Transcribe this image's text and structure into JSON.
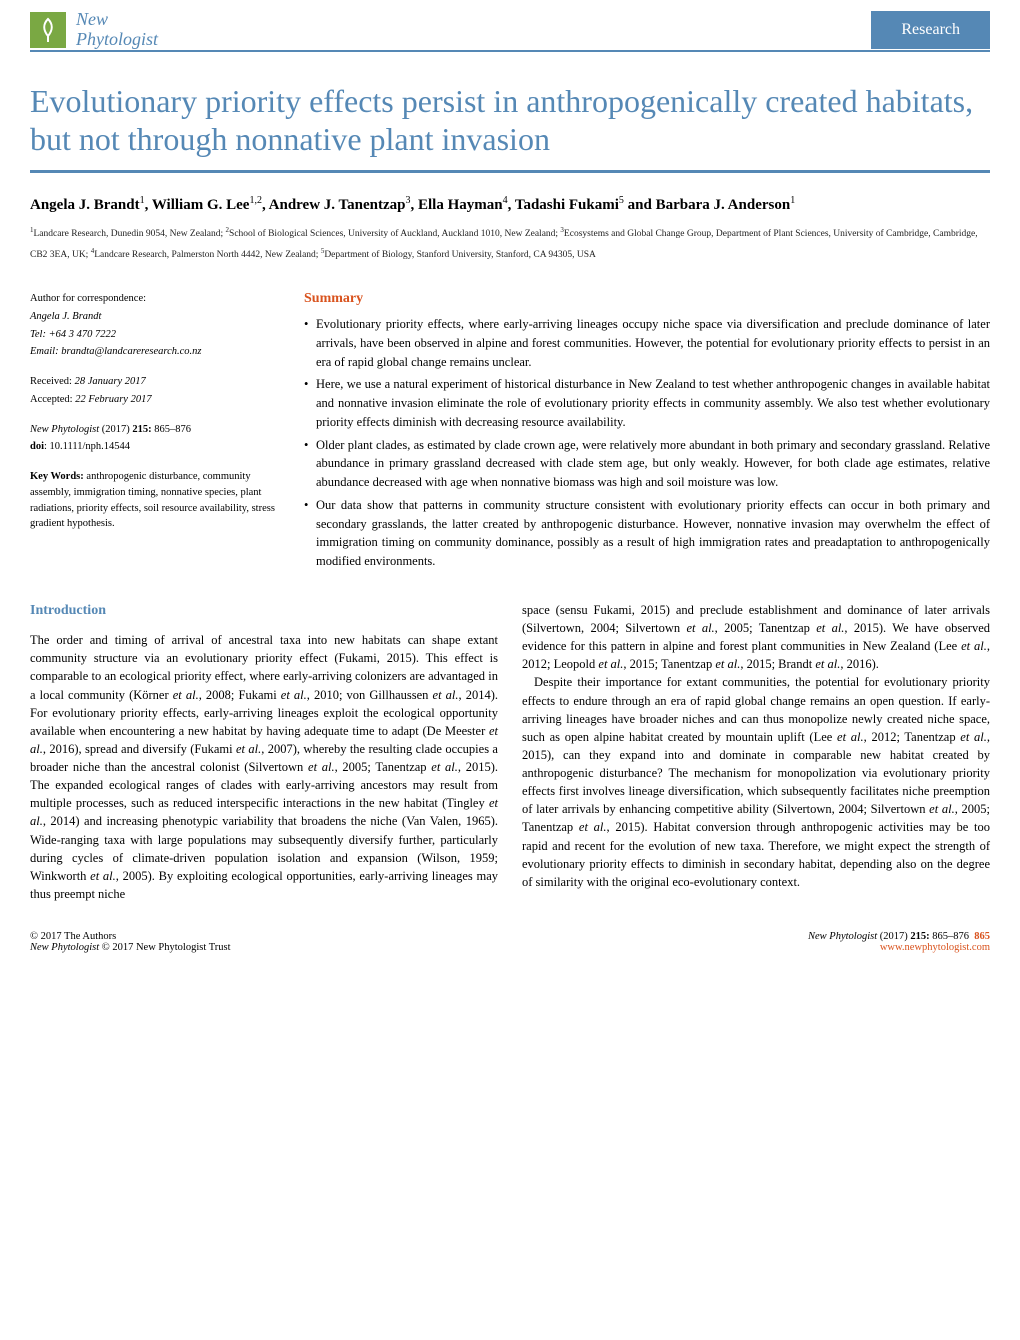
{
  "journal": {
    "line1": "New",
    "line2": "Phytologist"
  },
  "header": {
    "research": "Research"
  },
  "title": "Evolutionary priority effects persist in anthropogenically created habitats, but not through nonnative plant invasion",
  "authors_html": "Angela J. Brandt<sup>1</sup>, William G. Lee<sup>1,2</sup>, Andrew J. Tanentzap<sup>3</sup>, Ella Hayman<sup>4</sup>, Tadashi Fukami<sup>5</sup> and Barbara J. Anderson<sup>1</sup>",
  "affiliations_html": "<sup>1</sup>Landcare Research, Dunedin 9054, New Zealand; <sup>2</sup>School of Biological Sciences, University of Auckland, Auckland 1010, New Zealand; <sup>3</sup>Ecosystems and Global Change Group, Department of Plant Sciences, University of Cambridge, Cambridge, CB2 3EA, UK; <sup>4</sup>Landcare Research, Palmerston North 4442, New Zealand; <sup>5</sup>Department of Biology, Stanford University, Stanford, CA 94305, USA",
  "meta": {
    "corr_label": "Author for correspondence:",
    "corr_name": "Angela J. Brandt",
    "tel": "Tel: +64 3 470 7222",
    "email": "Email: brandta@landcareresearch.co.nz",
    "received": "Received: 28 January 2017",
    "accepted": "Accepted: 22 February 2017",
    "citation_html": "<span class=\"italic\">New Phytologist</span> (2017) <b>215:</b> 865–876",
    "doi": "doi: 10.1111/nph.14544",
    "keywords_label": "Key Words: ",
    "keywords": "anthropogenic disturbance, community assembly, immigration timing, nonnative species, plant radiations, priority effects, soil resource availability, stress gradient hypothesis."
  },
  "summary": {
    "title": "Summary",
    "bullets": [
      "Evolutionary priority effects, where early-arriving lineages occupy niche space via diversification and preclude dominance of later arrivals, have been observed in alpine and forest communities. However, the potential for evolutionary priority effects to persist in an era of rapid global change remains unclear.",
      "Here, we use a natural experiment of historical disturbance in New Zealand to test whether anthropogenic changes in available habitat and nonnative invasion eliminate the role of evolutionary priority effects in community assembly. We also test whether evolutionary priority effects diminish with decreasing resource availability.",
      "Older plant clades, as estimated by clade crown age, were relatively more abundant in both primary and secondary grassland. Relative abundance in primary grassland decreased with clade stem age, but only weakly. However, for both clade age estimates, relative abundance decreased with age when nonnative biomass was high and soil moisture was low.",
      "Our data show that patterns in community structure consistent with evolutionary priority effects can occur in both primary and secondary grasslands, the latter created by anthropogenic disturbance. However, nonnative invasion may overwhelm the effect of immigration timing on community dominance, possibly as a result of high immigration rates and preadaptation to anthropogenically modified environments."
    ]
  },
  "intro": {
    "title": "Introduction",
    "col1_html": "The order and timing of arrival of ancestral taxa into new habitats can shape extant community structure via an evolutionary priority effect (Fukami, 2015). This effect is comparable to an ecological priority effect, where early-arriving colonizers are advantaged in a local community (Körner <span class=\"em\">et al.</span>, 2008; Fukami <span class=\"em\">et al.</span>, 2010; von Gillhaussen <span class=\"em\">et al.</span>, 2014). For evolutionary priority effects, early-arriving lineages exploit the ecological opportunity available when encountering a new habitat by having adequate time to adapt (De Meester <span class=\"em\">et al.</span>, 2016), spread and diversify (Fukami <span class=\"em\">et al.</span>, 2007), whereby the resulting clade occupies a broader niche than the ancestral colonist (Silvertown <span class=\"em\">et al.</span>, 2005; Tanentzap <span class=\"em\">et al.</span>, 2015). The expanded ecological ranges of clades with early-arriving ancestors may result from multiple processes, such as reduced interspecific interactions in the new habitat (Tingley <span class=\"em\">et al.</span>, 2014) and increasing phenotypic variability that broadens the niche (Van Valen, 1965). Wide-ranging taxa with large populations may subsequently diversify further, particularly during cycles of climate-driven population isolation and expansion (Wilson, 1959; Winkworth <span class=\"em\">et al.</span>, 2005). By exploiting ecological opportunities, early-arriving lineages may thus preempt niche",
    "col2_html": "space (sensu Fukami, 2015) and preclude establishment and dominance of later arrivals (Silvertown, 2004; Silvertown <span class=\"em\">et al.</span>, 2005; Tanentzap <span class=\"em\">et al.</span>, 2015). We have observed evidence for this pattern in alpine and forest plant communities in New Zealand (Lee <span class=\"em\">et al.</span>, 2012; Leopold <span class=\"em\">et al.</span>, 2015; Tanentzap <span class=\"em\">et al.</span>, 2015; Brandt <span class=\"em\">et al.</span>, 2016).<br><span style=\"display:inline-block;width:12px\"></span>Despite their importance for extant communities, the potential for evolutionary priority effects to endure through an era of rapid global change remains an open question. If early-arriving lineages have broader niches and can thus monopolize newly created niche space, such as open alpine habitat created by mountain uplift (Lee <span class=\"em\">et al.</span>, 2012; Tanentzap <span class=\"em\">et al.</span>, 2015), can they expand into and dominate in comparable new habitat created by anthropogenic disturbance? The mechanism for monopolization via evolutionary priority effects first involves lineage diversification, which subsequently facilitates niche preemption of later arrivals by enhancing competitive ability (Silvertown, 2004; Silvertown <span class=\"em\">et al.</span>, 2005; Tanentzap <span class=\"em\">et al.</span>, 2015). Habitat conversion through anthropogenic activities may be too rapid and recent for the evolution of new taxa. Therefore, we might expect the strength of evolutionary priority effects to diminish in secondary habitat, depending also on the degree of similarity with the original eco-evolutionary context."
  },
  "footer": {
    "left_l1": "© 2017 The Authors",
    "left_l2_html": "<span class=\"italic\">New Phytologist</span> © 2017 New Phytologist Trust",
    "right_l1_html": "<span class=\"italic\">New Phytologist</span> (2017) <b>215:</b> 865–876",
    "page_num": "865",
    "url": "www.newphytologist.com"
  },
  "colors": {
    "brand_blue": "#5588b5",
    "accent_orange": "#d9531e",
    "logo_green": "#7aa843"
  }
}
